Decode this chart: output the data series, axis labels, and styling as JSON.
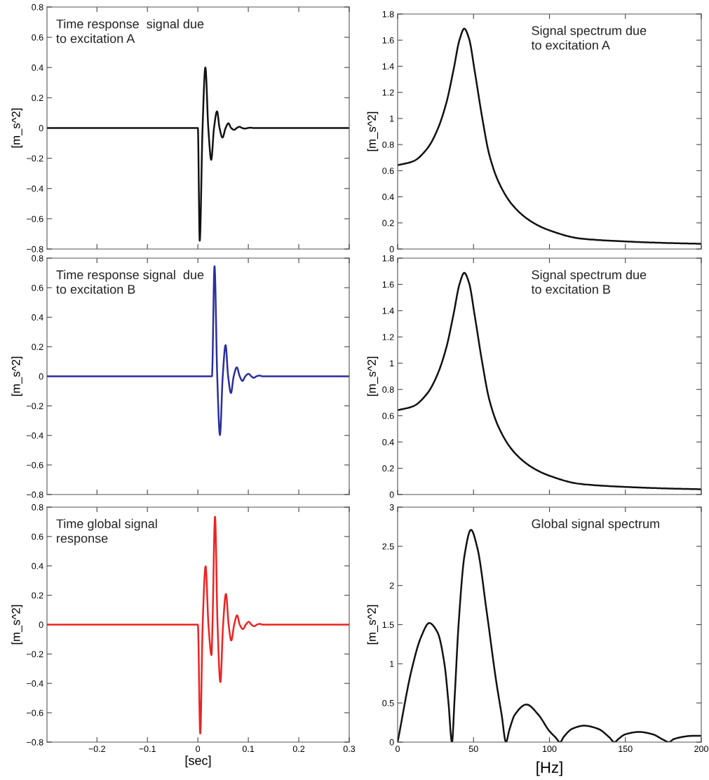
{
  "chart_data": [
    {
      "type": "line",
      "annotations": [
        "Time response  signal due\nto excitation A"
      ],
      "ylabel": "[m_s^2]",
      "tick_labels": "y",
      "xlim": [
        -0.299,
        0.3
      ],
      "xticks": [
        {
          "value": -0.2,
          "label": null
        },
        {
          "value": -0.1,
          "label": null
        },
        {
          "value": 0,
          "label": null
        },
        {
          "value": 0.1,
          "label": null
        },
        {
          "value": 0.2,
          "label": null
        },
        {
          "value": 0.3,
          "label": null
        }
      ],
      "ylim": [
        -0.8,
        0.8
      ],
      "yticks": [
        {
          "value": -0.8,
          "label": "−0.8"
        },
        {
          "value": -0.6,
          "label": "−0.6"
        },
        {
          "value": -0.4,
          "label": "−0.4"
        },
        {
          "value": -0.2,
          "label": "−0.2"
        },
        0,
        0.2,
        0.4,
        0.6,
        0.8
      ],
      "series": [
        {
          "color": "#111111",
          "x": [
            -0.299,
            0,
            0.0037,
            0.0093,
            0.0149,
            0.0207,
            0.0265,
            0.032,
            0.038,
            0.043,
            0.0488,
            0.055,
            0.0605,
            0.066,
            0.072,
            0.077,
            0.0823,
            0.088,
            0.093,
            0.099,
            0.1047,
            0.11,
            0.3
          ],
          "values": [
            0,
            0,
            -0.745,
            0,
            0.4,
            0,
            -0.21,
            0,
            0.11,
            0,
            -0.063,
            0,
            0.031,
            0,
            -0.012,
            0,
            0.008,
            0,
            -0.004,
            0,
            0.002,
            0,
            0
          ]
        }
      ]
    },
    {
      "type": "line",
      "annotations": [
        "Signal spectrum due\nto excitation A"
      ],
      "ylabel": "[m_s^2]",
      "tick_labels": "y",
      "xlim": [
        0,
        200
      ],
      "xticks": [
        {
          "value": 0,
          "label": null
        },
        {
          "value": 50,
          "label": null
        },
        {
          "value": 100,
          "label": null
        },
        {
          "value": 150,
          "label": null
        },
        {
          "value": 200,
          "label": null
        }
      ],
      "ylim": [
        0,
        1.8
      ],
      "yticks": [
        0,
        0.2,
        0.4,
        0.6,
        0.8,
        1,
        1.2,
        1.4,
        1.6,
        1.8
      ],
      "series": [
        {
          "color": "#111111",
          "x": [
            0,
            10.2,
            19.6,
            25.9,
            32.1,
            36.8,
            40.8,
            43.9,
            47,
            50.9,
            55.6,
            60.3,
            66.6,
            76,
            88.6,
            100,
            120,
            150,
            175,
            200
          ],
          "values": [
            0.642,
            0.672,
            0.771,
            0.905,
            1.12,
            1.371,
            1.604,
            1.688,
            1.613,
            1.353,
            1.013,
            0.726,
            0.511,
            0.332,
            0.206,
            0.143,
            0.081,
            0.058,
            0.047,
            0.04
          ]
        }
      ]
    },
    {
      "type": "line",
      "annotations": [
        "Time response signal  due\nto excitation B"
      ],
      "ylabel": "[m_s^2]",
      "tick_labels": "y",
      "xlim": [
        -0.299,
        0.3
      ],
      "xticks": [
        {
          "value": -0.2,
          "label": null
        },
        {
          "value": -0.1,
          "label": null
        },
        {
          "value": 0,
          "label": null
        },
        {
          "value": 0.1,
          "label": null
        },
        {
          "value": 0.2,
          "label": null
        },
        {
          "value": 0.3,
          "label": null
        }
      ],
      "ylim": [
        -0.8,
        0.8
      ],
      "yticks": [
        {
          "value": -0.8,
          "label": "−0.8"
        },
        {
          "value": -0.6,
          "label": "−0.6"
        },
        {
          "value": -0.4,
          "label": "−0.4"
        },
        {
          "value": -0.2,
          "label": "−0.2"
        },
        0,
        0.2,
        0.4,
        0.6,
        0.8
      ],
      "series": [
        {
          "color": "#2b2f9b",
          "x": [
            -0.299,
            0.0279,
            0.033,
            0.0384,
            0.0437,
            0.0493,
            0.0549,
            0.06,
            0.0656,
            0.071,
            0.0772,
            0.083,
            0.0884,
            0.094,
            0.1005,
            0.106,
            0.1107,
            0.116,
            0.1223,
            0.128,
            0.3
          ],
          "values": [
            0,
            0,
            0.745,
            0,
            -0.397,
            0,
            0.211,
            0,
            -0.113,
            0,
            0.061,
            0,
            -0.031,
            0,
            0.017,
            0,
            -0.01,
            0,
            0.005,
            0,
            0
          ]
        }
      ]
    },
    {
      "type": "line",
      "annotations": [
        "Signal spectrum due\nto excitation B"
      ],
      "ylabel": "[m_s^2]",
      "tick_labels": "y",
      "xlim": [
        0,
        200
      ],
      "xticks": [
        {
          "value": 0,
          "label": null
        },
        {
          "value": 50,
          "label": null
        },
        {
          "value": 100,
          "label": null
        },
        {
          "value": 150,
          "label": null
        },
        {
          "value": 200,
          "label": null
        }
      ],
      "ylim": [
        0,
        1.8
      ],
      "yticks": [
        0,
        0.2,
        0.4,
        0.6,
        0.8,
        1,
        1.2,
        1.4,
        1.6,
        1.8
      ],
      "series": [
        {
          "color": "#111111",
          "x": [
            0,
            10.2,
            19.6,
            25.9,
            32.1,
            36.8,
            40.8,
            43.9,
            47,
            50.9,
            55.6,
            60.3,
            66.6,
            76,
            88.6,
            100,
            120,
            150,
            175,
            200
          ],
          "values": [
            0.642,
            0.672,
            0.771,
            0.905,
            1.12,
            1.371,
            1.604,
            1.688,
            1.613,
            1.353,
            1.013,
            0.726,
            0.511,
            0.332,
            0.206,
            0.143,
            0.081,
            0.058,
            0.047,
            0.04
          ]
        }
      ]
    },
    {
      "type": "line",
      "annotations": [
        "Time global signal\nresponse"
      ],
      "ylabel": "[m_s^2]",
      "xlabel": "[sec]",
      "xlim": [
        -0.299,
        0.3
      ],
      "xticks": [
        {
          "value": -0.2,
          "label": "−0.2"
        },
        {
          "value": -0.1,
          "label": "−0.1"
        },
        0,
        0.1,
        0.2,
        0.3
      ],
      "ylim": [
        -0.8,
        0.8
      ],
      "yticks": [
        {
          "value": -0.8,
          "label": "−0.8"
        },
        {
          "value": -0.6,
          "label": "−0.6"
        },
        {
          "value": -0.4,
          "label": "−0.4"
        },
        {
          "value": -0.2,
          "label": "−0.2"
        },
        0,
        0.2,
        0.4,
        0.6,
        0.8
      ],
      "series": [
        {
          "color": "#ee2222",
          "x": [
            -0.299,
            0,
            0.0047,
            0.0095,
            0.0153,
            0.021,
            0.027,
            0.029,
            0.034,
            0.039,
            0.0446,
            0.05,
            0.0556,
            0.061,
            0.0662,
            0.072,
            0.0778,
            0.083,
            0.0893,
            0.095,
            0.101,
            0.106,
            0.112,
            0.117,
            0.123,
            0.128,
            0.3
          ],
          "values": [
            0,
            0,
            -0.741,
            0,
            0.397,
            0,
            -0.207,
            0,
            0.735,
            0,
            -0.391,
            0,
            0.209,
            0,
            -0.108,
            0,
            0.063,
            0,
            -0.03,
            0,
            0.019,
            0,
            -0.011,
            0,
            0.005,
            0,
            0
          ]
        }
      ]
    },
    {
      "type": "line",
      "annotations": [
        "Global signal spectrum"
      ],
      "ylabel": "[m_s^2]",
      "xlabel": "[Hz]",
      "xlim": [
        0,
        200
      ],
      "xticks": [
        0,
        50,
        100,
        150,
        200
      ],
      "ylim": [
        0,
        3
      ],
      "yticks": [
        0,
        0.5,
        1,
        1.5,
        2,
        2.5,
        3
      ],
      "series": [
        {
          "color": "#111111",
          "x": [
            0,
            9.3,
            15.4,
            20.8,
            26.3,
            30.9,
            33.5,
            35.8,
            37.5,
            40.2,
            44.1,
            48.3,
            52.5,
            58.7,
            64.9,
            68.5,
            71.4,
            73.5,
            77.2,
            84.9,
            92.7,
            100,
            104,
            107,
            109.5,
            115,
            122.8,
            132,
            139.5,
            142.7,
            146,
            150,
            159,
            168,
            175,
            178.7,
            182,
            194.6,
            200
          ],
          "values": [
            0,
            0.93,
            1.34,
            1.52,
            1.4,
            0.99,
            0.5,
            0,
            0.55,
            1.52,
            2.39,
            2.71,
            2.48,
            1.66,
            0.78,
            0.35,
            0,
            0.15,
            0.35,
            0.48,
            0.35,
            0.14,
            0.06,
            0,
            0.07,
            0.17,
            0.21,
            0.17,
            0.06,
            0,
            0.05,
            0.1,
            0.13,
            0.1,
            0.03,
            0,
            0.04,
            0.08,
            0.08
          ]
        }
      ]
    }
  ]
}
